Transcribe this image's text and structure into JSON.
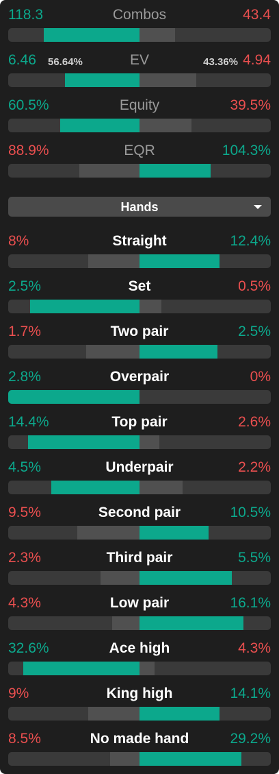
{
  "summary": [
    {
      "label": "Combos",
      "left": 118.3,
      "right": 43.4
    },
    {
      "label": "EV",
      "left": 6.46,
      "right": 4.94,
      "left_share": {
        "value": 56.64,
        "label": "56.64%"
      },
      "right_share": {
        "value": 43.36,
        "label": "43.36%"
      }
    },
    {
      "label": "Equity",
      "left": {
        "value": 60.5,
        "label": "60.5%"
      },
      "right": {
        "value": 39.5,
        "label": "39.5%"
      }
    },
    {
      "label": "EQR",
      "left": {
        "value": 88.9,
        "label": "88.9%"
      },
      "right": {
        "value": 104.3,
        "label": "104.3%"
      }
    }
  ],
  "dropdown": {
    "label": "Hands"
  },
  "hands": [
    {
      "label": "Straight",
      "left": {
        "value": 8,
        "label": "8%"
      },
      "right": {
        "value": 12.4,
        "label": "12.4%"
      }
    },
    {
      "label": "Set",
      "left": {
        "value": 2.5,
        "label": "2.5%"
      },
      "right": {
        "value": 0.5,
        "label": "0.5%"
      }
    },
    {
      "label": "Two pair",
      "left": {
        "value": 1.7,
        "label": "1.7%"
      },
      "right": {
        "value": 2.5,
        "label": "2.5%"
      }
    },
    {
      "label": "Overpair",
      "left": {
        "value": 2.8,
        "label": "2.8%"
      },
      "right": {
        "value": 0,
        "label": "0%"
      }
    },
    {
      "label": "Top pair",
      "left": {
        "value": 14.4,
        "label": "14.4%"
      },
      "right": {
        "value": 2.6,
        "label": "2.6%"
      }
    },
    {
      "label": "Underpair",
      "left": {
        "value": 4.5,
        "label": "4.5%"
      },
      "right": {
        "value": 2.2,
        "label": "2.2%"
      }
    },
    {
      "label": "Second pair",
      "left": {
        "value": 9.5,
        "label": "9.5%"
      },
      "right": {
        "value": 10.5,
        "label": "10.5%"
      }
    },
    {
      "label": "Third pair",
      "left": {
        "value": 2.3,
        "label": "2.3%"
      },
      "right": {
        "value": 5.5,
        "label": "5.5%"
      }
    },
    {
      "label": "Low pair",
      "left": {
        "value": 4.3,
        "label": "4.3%"
      },
      "right": {
        "value": 16.1,
        "label": "16.1%"
      }
    },
    {
      "label": "Ace high",
      "left": {
        "value": 32.6,
        "label": "32.6%"
      },
      "right": {
        "value": 4.3,
        "label": "4.3%"
      }
    },
    {
      "label": "King high",
      "left": {
        "value": 9,
        "label": "9%"
      },
      "right": {
        "value": 14.1,
        "label": "14.1%"
      }
    },
    {
      "label": "No made hand",
      "left": {
        "value": 8.5,
        "label": "8.5%"
      },
      "right": {
        "value": 29.2,
        "label": "29.2%"
      }
    }
  ]
}
